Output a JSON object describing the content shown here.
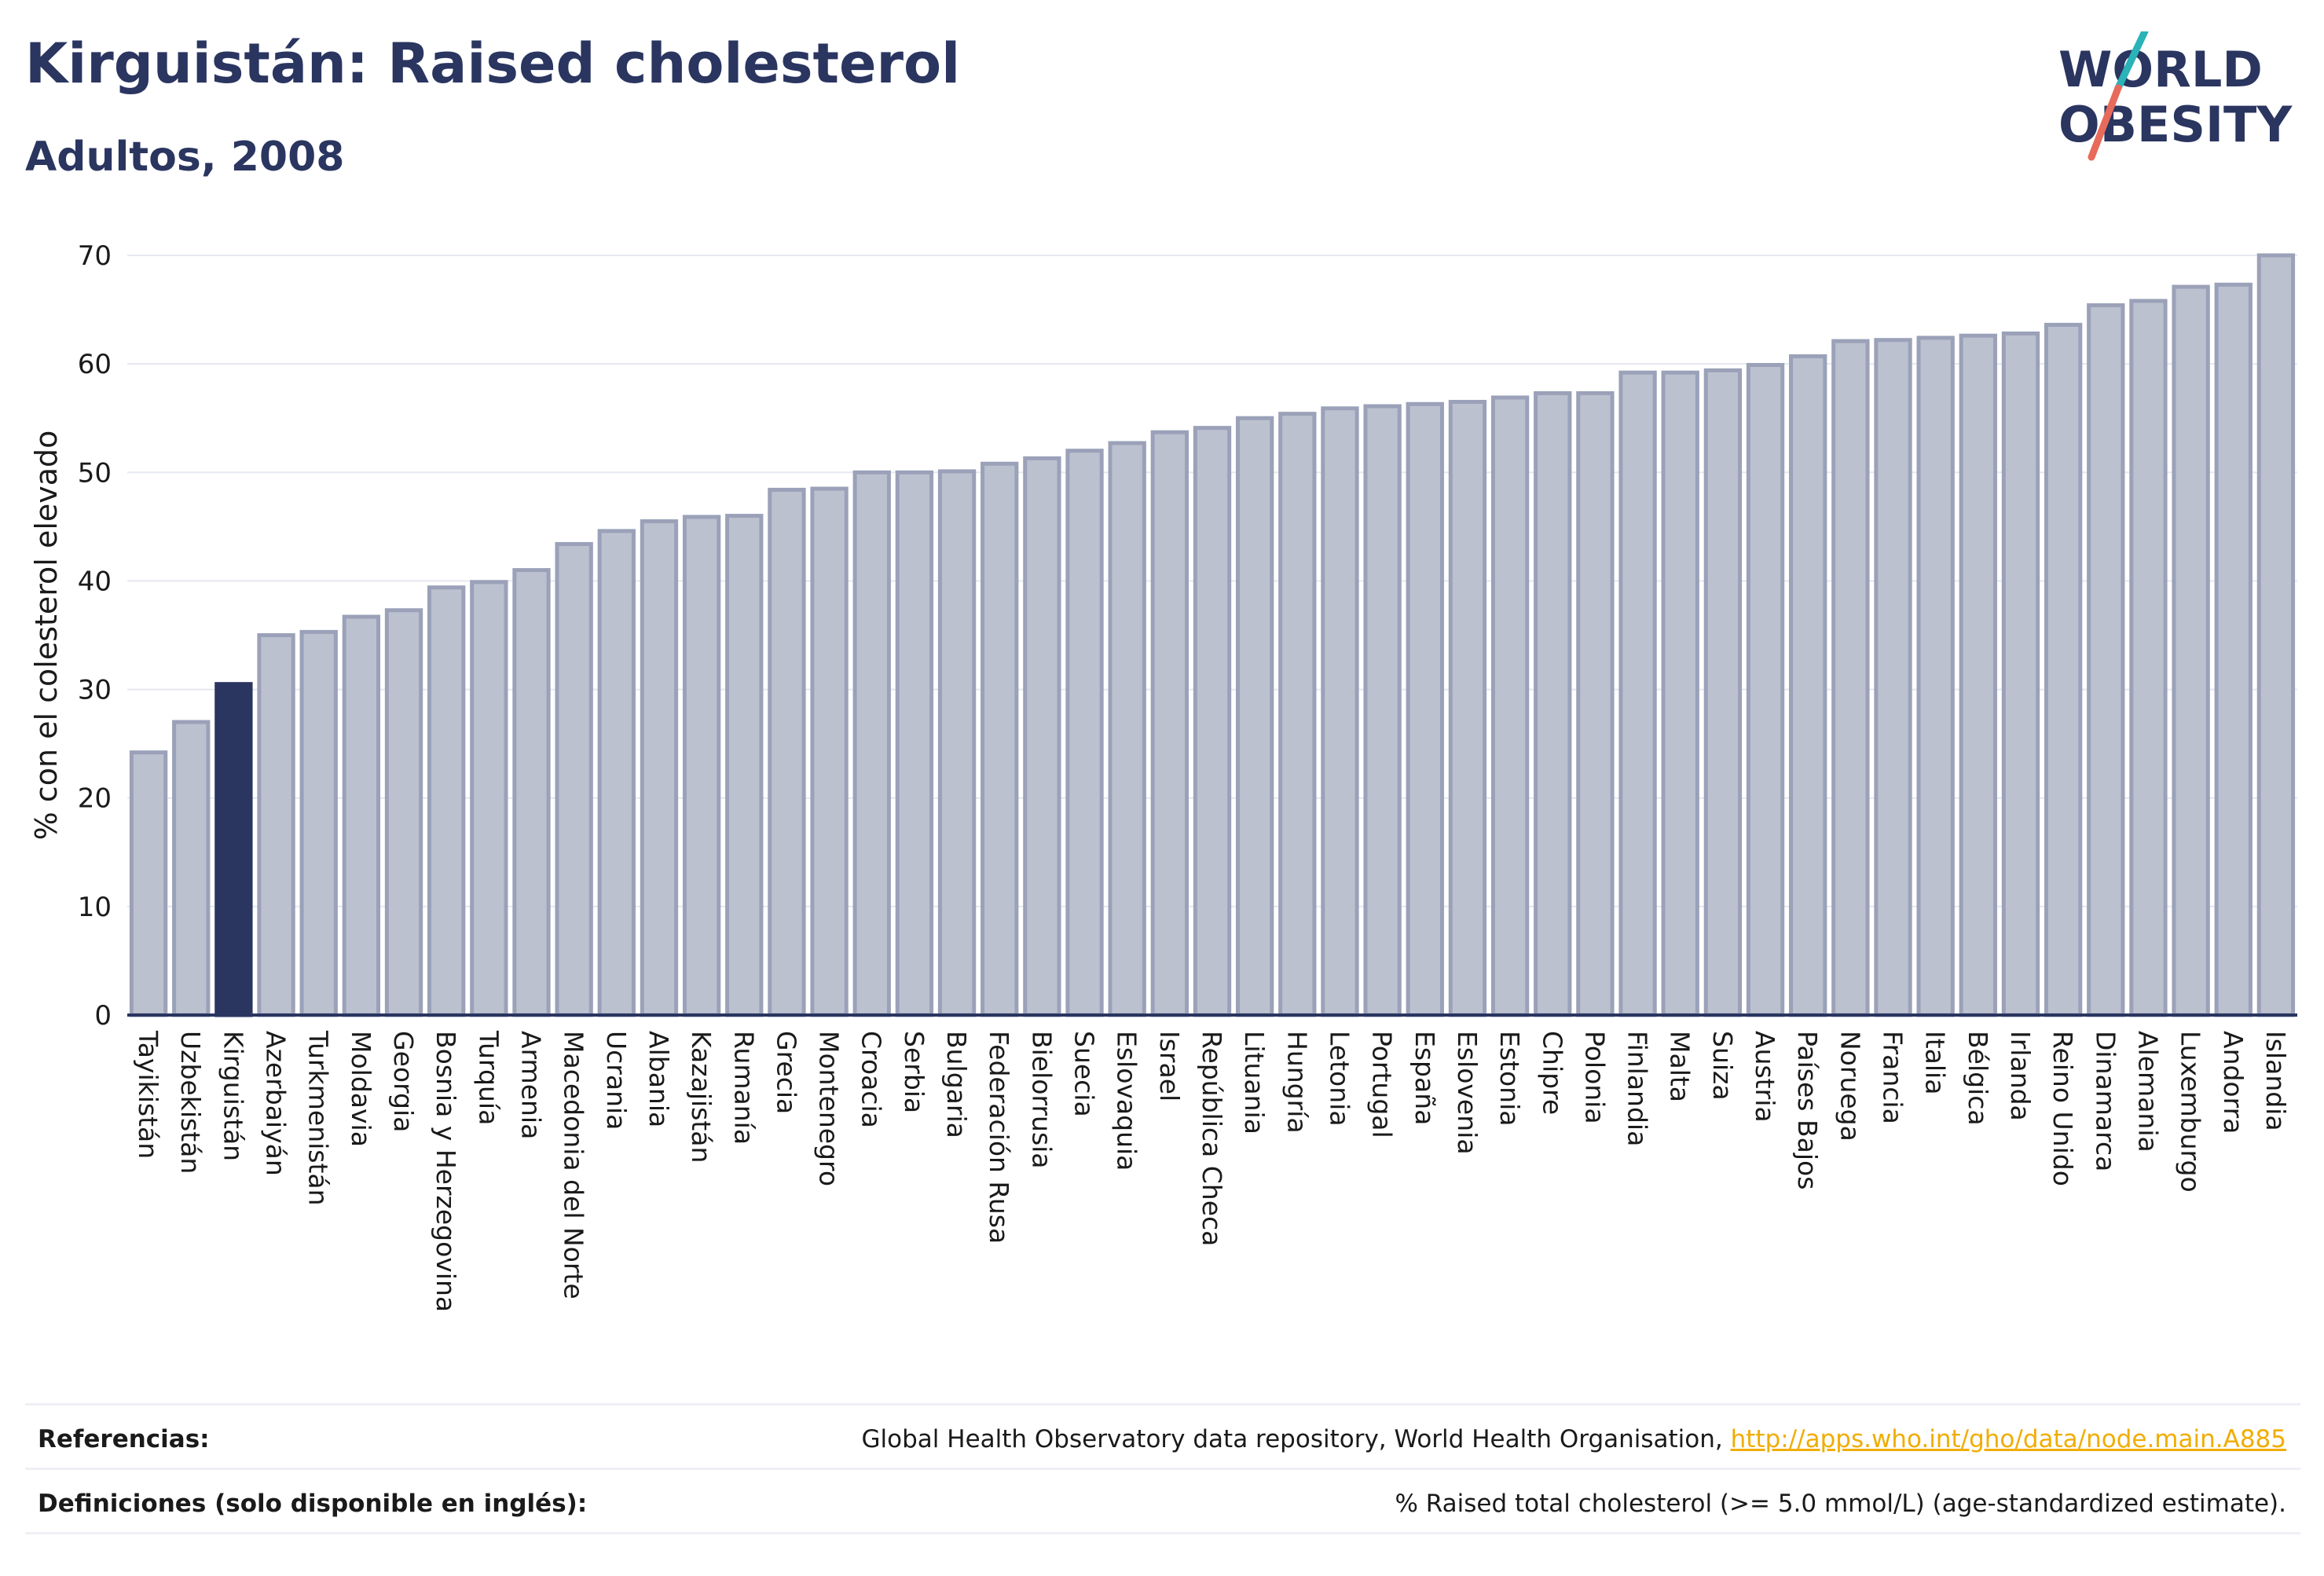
{
  "header": {
    "title": "Kirguistán: Raised cholesterol",
    "subtitle": "Adultos, 2008"
  },
  "logo": {
    "line1": "WORLD",
    "line2": "OBESITY",
    "colors": {
      "text": "#2a3560",
      "slash_top": "#2ab3b8",
      "slash_bottom": "#e86a5a"
    }
  },
  "chart_data": {
    "type": "bar",
    "ylabel": "% con el colesterol elevado",
    "xlabel": "",
    "ylim": [
      0,
      70
    ],
    "yticks": [
      0,
      10,
      20,
      30,
      40,
      50,
      60,
      70
    ],
    "grid": true,
    "highlight": "Kirguistán",
    "colors": {
      "bar": "#bcc1d0",
      "bar_stroke": "#9aa1b8",
      "highlight": "#2a3560",
      "grid": "#e6e8ef",
      "axis": "#2a3560"
    },
    "categories": [
      "Tayikistán",
      "Uzbekistán",
      "Kirguistán",
      "Azerbaiyán",
      "Turkmenistán",
      "Moldavia",
      "Georgia",
      "Bosnia y Herzegovina",
      "Turquía",
      "Armenia",
      "Macedonia del Norte",
      "Ucrania",
      "Albania",
      "Kazajistán",
      "Rumanía",
      "Grecia",
      "Montenegro",
      "Croacia",
      "Serbia",
      "Bulgaria",
      "Federación Rusa",
      "Bielorrusia",
      "Suecia",
      "Eslovaquia",
      "Israel",
      "República Checa",
      "Lituania",
      "Hungría",
      "Letonia",
      "Portugal",
      "España",
      "Eslovenia",
      "Estonia",
      "Chipre",
      "Polonia",
      "Finlandia",
      "Malta",
      "Suiza",
      "Austria",
      "Países Bajos",
      "Noruega",
      "Francia",
      "Italia",
      "Bélgica",
      "Irlanda",
      "Reino Unido",
      "Dinamarca",
      "Alemania",
      "Luxemburgo",
      "Andorra",
      "Islandia"
    ],
    "values": [
      24.2,
      27.0,
      30.5,
      35.0,
      35.3,
      36.7,
      37.3,
      39.4,
      39.9,
      41.0,
      43.4,
      44.6,
      45.5,
      45.9,
      46.0,
      48.4,
      48.5,
      50.0,
      50.0,
      50.1,
      50.8,
      51.3,
      52.0,
      52.7,
      53.7,
      54.1,
      55.0,
      55.4,
      55.9,
      56.1,
      56.3,
      56.5,
      56.9,
      57.3,
      57.3,
      59.2,
      59.2,
      59.4,
      59.9,
      60.7,
      62.1,
      62.2,
      62.4,
      62.6,
      62.8,
      63.6,
      65.4,
      65.8,
      67.1,
      67.3,
      70.0
    ]
  },
  "footer": {
    "references_label": "Referencias:",
    "references_text": "Global Health Observatory data repository, World Health Organisation, ",
    "references_link": "http://apps.who.int/gho/data/node.main.A885",
    "definitions_label": "Definiciones (solo disponible en inglés):",
    "definitions_text": "% Raised total cholesterol (>= 5.0 mmol/L) (age-standardized estimate)."
  }
}
